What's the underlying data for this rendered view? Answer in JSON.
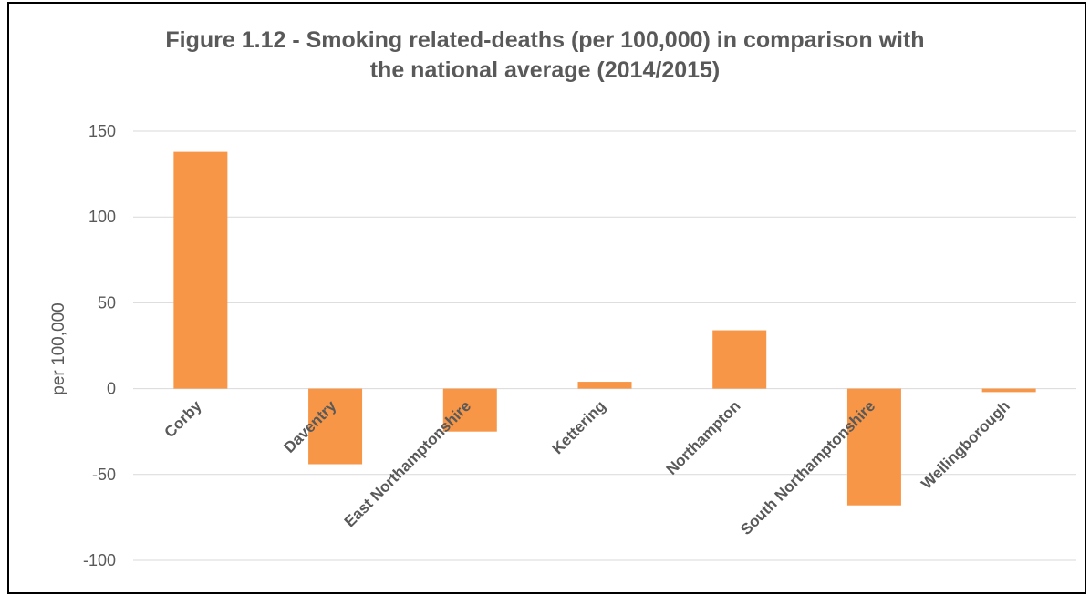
{
  "chart_data": {
    "type": "bar",
    "title_lines": [
      "Figure 1.12 - Smoking related-deaths (per 100,000) in comparison with",
      "the national average (2014/2015)"
    ],
    "xlabel": "",
    "ylabel": "per 100,000",
    "ylim": [
      -100,
      150
    ],
    "yticks": [
      150,
      100,
      50,
      0,
      -50,
      -100
    ],
    "ytick_labels": [
      "150",
      "100",
      "50",
      "0",
      "-50",
      "-100"
    ],
    "grid": true,
    "categories": [
      "Corby",
      "Daventry",
      "East Northamptonshire",
      "Kettering",
      "Northampton",
      "South Northamptonshire",
      "Wellingborough"
    ],
    "values": [
      138,
      -44,
      -25,
      4,
      34,
      -68,
      -2
    ],
    "bar_color": "#f79646",
    "grid_color": "#d9d9d9",
    "text_color": "#595959"
  }
}
